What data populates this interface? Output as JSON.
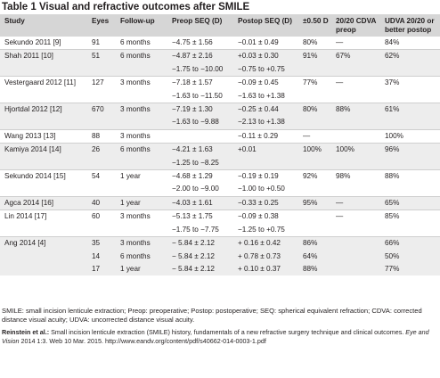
{
  "title": "Table 1 Visual and refractive outcomes after SMILE",
  "headers": [
    "Study",
    "Eyes",
    "Follow-up",
    "Preop SEQ (D)",
    "Postop SEQ (D)",
    "±0.50 D",
    "20/20 CDVA preop",
    "UDVA 20/20 or better postop"
  ],
  "rows": [
    {
      "shade": false,
      "end": true,
      "cells": [
        "Sekundo 2011 [9]",
        "91",
        "6 months",
        "−4.75 ± 1.56",
        "−0.01 ± 0.49",
        "80%",
        "—",
        "84%"
      ]
    },
    {
      "shade": true,
      "end": false,
      "cells": [
        "Shah 2011 [10]",
        "51",
        "6 months",
        "−4.87 ± 2.16",
        "+0.03 ± 0.30",
        "91%",
        "67%",
        "62%"
      ]
    },
    {
      "shade": true,
      "end": true,
      "cells": [
        "",
        "",
        "",
        "−1.75 to −10.00",
        "−0.75 to +0.75",
        "",
        "",
        ""
      ]
    },
    {
      "shade": false,
      "end": false,
      "cells": [
        "Vestergaard 2012 [11]",
        "127",
        "3 months",
        "−7.18 ± 1.57",
        "−0.09 ± 0.45",
        "77%",
        "—",
        "37%"
      ]
    },
    {
      "shade": false,
      "end": true,
      "cells": [
        "",
        "",
        "",
        "−1.63 to −11.50",
        "−1.63 to +1.38",
        "",
        "",
        ""
      ]
    },
    {
      "shade": true,
      "end": false,
      "cells": [
        "Hjortdal 2012 [12]",
        "670",
        "3 months",
        "−7.19 ± 1.30",
        "−0.25 ± 0.44",
        "80%",
        "88%",
        "61%"
      ]
    },
    {
      "shade": true,
      "end": true,
      "cells": [
        "",
        "",
        "",
        "−1.63 to −9.88",
        "−2.13 to +1.38",
        "",
        "",
        ""
      ]
    },
    {
      "shade": false,
      "end": true,
      "cells": [
        "Wang 2013 [13]",
        "88",
        "3 months",
        "",
        "−0.11 ± 0.29",
        "—",
        "",
        "100%"
      ]
    },
    {
      "shade": true,
      "end": false,
      "cells": [
        "Kamiya 2014 [14]",
        "26",
        "6 months",
        "−4.21 ± 1.63",
        "+0.01",
        "100%",
        "100%",
        "96%"
      ]
    },
    {
      "shade": true,
      "end": true,
      "cells": [
        "",
        "",
        "",
        "−1.25 to −8.25",
        "",
        "",
        "",
        ""
      ]
    },
    {
      "shade": false,
      "end": false,
      "cells": [
        "Sekundo 2014 [15]",
        "54",
        "1 year",
        "−4.68 ± 1.29",
        "−0.19 ± 0.19",
        "92%",
        "98%",
        "88%"
      ]
    },
    {
      "shade": false,
      "end": true,
      "cells": [
        "",
        "",
        "",
        "−2.00 to −9.00",
        "−1.00 to +0.50",
        "",
        "",
        ""
      ]
    },
    {
      "shade": true,
      "end": true,
      "cells": [
        "Agca 2014 [16]",
        "40",
        "1 year",
        "−4.03 ± 1.61",
        "−0.33 ± 0.25",
        "95%",
        "—",
        "65%"
      ]
    },
    {
      "shade": false,
      "end": false,
      "cells": [
        "Lin 2014 [17]",
        "60",
        "3 months",
        "−5.13 ± 1.75",
        "−0.09 ± 0.38",
        "",
        "—",
        "85%"
      ]
    },
    {
      "shade": false,
      "end": true,
      "cells": [
        "",
        "",
        "",
        "−1.75 to −7.75",
        "−1.25 to +0.75",
        "",
        "",
        ""
      ]
    },
    {
      "shade": true,
      "end": false,
      "cells": [
        "Ang 2014 [4]",
        "35",
        "3 months",
        "− 5.84 ± 2.12",
        "+ 0.16 ± 0.42",
        "86%",
        "",
        "66%"
      ]
    },
    {
      "shade": true,
      "end": false,
      "cells": [
        "",
        "14",
        "6 months",
        "− 5.84 ± 2.12",
        "+ 0.78 ± 0.73",
        "64%",
        "",
        "50%"
      ]
    },
    {
      "shade": true,
      "end": false,
      "cells": [
        "",
        "17",
        "1 year",
        "− 5.84 ± 2.12",
        "+ 0.10 ± 0.37",
        "88%",
        "",
        "77%"
      ]
    }
  ],
  "footnote": "SMILE: small incision lenticule extraction; Preop: preoperative; Postop: postoperative; SEQ: spherical equivalent refraction; CDVA: corrected distance visual acuity; UDVA: uncorrected distance visual acuity.",
  "citation": {
    "author": "Reinstein et al.:",
    "title": " Small incision lenticule extraction (SMILE) history, fundamentals of a new refractive surgery technique and clinical outcomes.",
    "journal": " Eye and Vision",
    "details": " 2014 1:3. Web 10 Mar. 2015. http://www.eandv.org/content/pdf/s40662-014-0003-1.pdf"
  }
}
